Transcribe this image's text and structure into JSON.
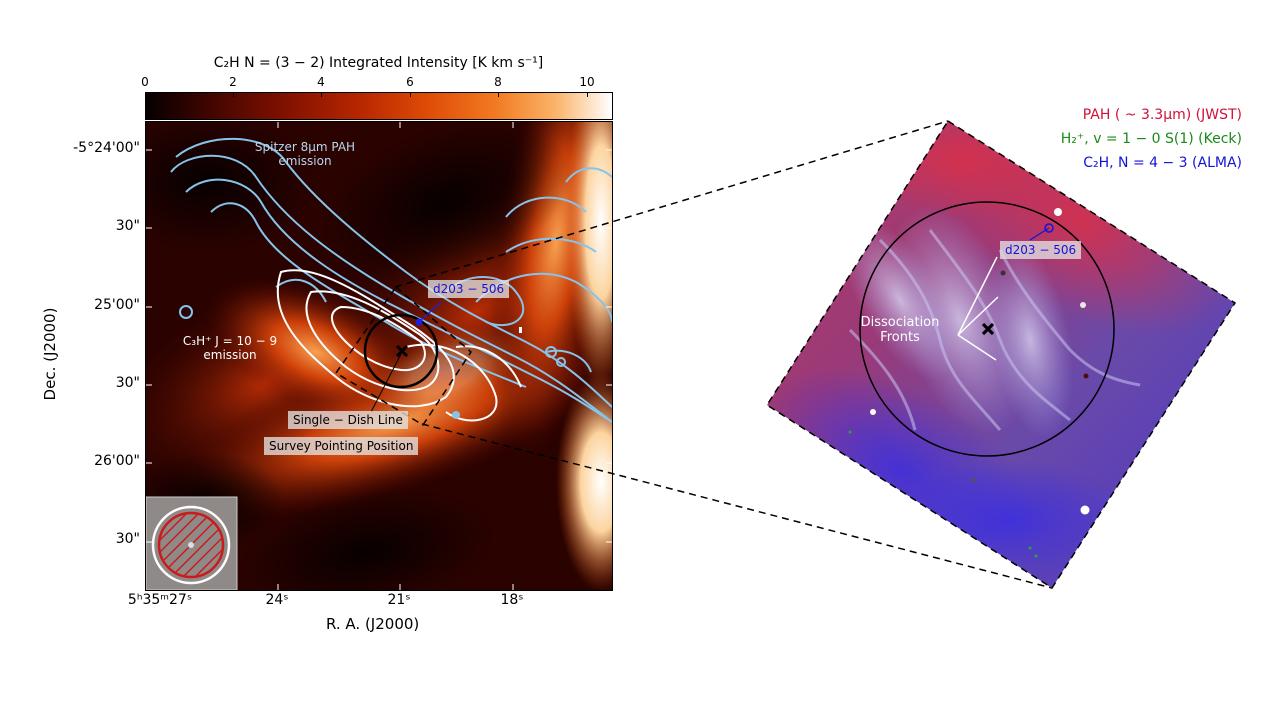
{
  "colorbar": {
    "title": "C₂H N = (3 − 2) Integrated Intensity [K km s⁻¹]",
    "ticks": [
      "0",
      "2",
      "4",
      "6",
      "8",
      "10"
    ]
  },
  "left_panel": {
    "y_ticks": [
      "-5°24'00\"",
      "30\"",
      "25'00\"",
      "30\"",
      "26'00\"",
      "30\""
    ],
    "x_ticks": [
      "5ʰ35ᵐ27ˢ",
      "24ˢ",
      "21ˢ",
      "18ˢ"
    ],
    "xlabel": "R. A.  (J2000)",
    "ylabel": "Dec.  (J2000)",
    "annotation_pah_line1": "Spitzer 8μm PAH",
    "annotation_pah_line2": "emission",
    "annotation_c3h_line1": "C₃H⁺ J = 10 − 9",
    "annotation_c3h_line2": "emission",
    "source_label": "d203 − 506",
    "pointing_line1": "Single − Dish Line",
    "pointing_line2": "Survey Pointing Position"
  },
  "right_panel": {
    "legend_pah": "PAH ( ~ 3.3μm) (JWST)",
    "legend_h2": "H₂⁺, v = 1 − 0 S(1) (Keck)",
    "legend_c2h": "C₂H, N = 4 − 3 (ALMA)",
    "source_label": "d203 − 506",
    "fronts_line1": "Dissociation",
    "fronts_line2": "Fronts"
  },
  "colors": {
    "pah": "#d0103a",
    "h2": "#1a8a1a",
    "c2h": "#1414d8",
    "contour_pah": "#87c3ea",
    "contour_c3h": "#ffffff"
  }
}
